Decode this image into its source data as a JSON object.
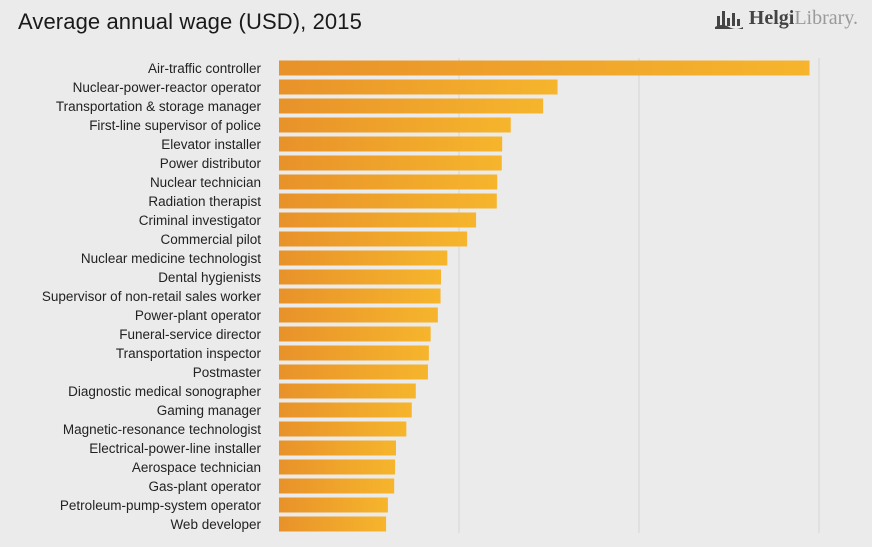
{
  "header": {
    "title": "Average annual wage (USD), 2015",
    "logo_strong": "Helgi",
    "logo_light": "Library."
  },
  "colors": {
    "background": "#ebebeb",
    "bar_start": "#e8922a",
    "bar_end": "#f6b52c",
    "gridline": "#d4d4d4"
  },
  "chart_data": {
    "type": "bar",
    "orientation": "horizontal",
    "title": "Average annual wage (USD), 2015",
    "categories": [
      "Air-traffic controller",
      "Nuclear-power-reactor operator",
      "Transportation & storage manager",
      "First-line supervisor of police",
      "Elevator installer",
      "Power distributor",
      "Nuclear technician",
      "Radiation therapist",
      "Criminal investigator",
      "Commercial pilot",
      "Nuclear medicine technologist",
      "Dental hygienists",
      "Supervisor of non-retail sales worker",
      "Power-plant operator",
      "Funeral-service director",
      "Transportation inspector",
      "Postmaster",
      "Diagnostic medical sonographer",
      "Gaming manager",
      "Magnetic-resonance technologist",
      "Electrical-power-line installer",
      "Aerospace technician",
      "Gas-plant operator",
      "Petroleum-pump-system operator",
      "Web developer"
    ],
    "values": [
      117900,
      61900,
      58700,
      51500,
      49600,
      49500,
      48500,
      48400,
      43800,
      41800,
      37400,
      36000,
      35900,
      35300,
      33700,
      33300,
      33100,
      30400,
      29500,
      28300,
      26000,
      25800,
      25600,
      24200,
      23800
    ],
    "xlim": [
      0,
      120000
    ],
    "grid": true,
    "legend": "none"
  }
}
